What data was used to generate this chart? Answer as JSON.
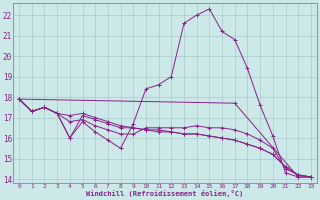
{
  "bg_color": "#cce8e8",
  "grid_color": "#aacccc",
  "line_color": "#882288",
  "marker": "+",
  "xlabel": "Windchill (Refroidissement éolien,°C)",
  "xlim": [
    -0.5,
    23.5
  ],
  "ylim": [
    13.8,
    22.6
  ],
  "yticks": [
    14,
    15,
    16,
    17,
    18,
    19,
    20,
    21,
    22
  ],
  "xticks": [
    0,
    1,
    2,
    3,
    4,
    5,
    6,
    7,
    8,
    9,
    10,
    11,
    12,
    13,
    14,
    15,
    16,
    17,
    18,
    19,
    20,
    21,
    22,
    23
  ],
  "lines": [
    {
      "x": [
        0,
        1,
        2,
        3,
        4,
        5,
        6,
        7,
        8,
        9,
        10,
        11,
        12,
        13,
        14,
        15,
        16,
        17,
        18,
        19,
        20,
        21,
        22,
        23
      ],
      "y": [
        17.9,
        17.3,
        17.5,
        17.2,
        16.0,
        16.8,
        16.3,
        15.9,
        15.5,
        16.7,
        18.4,
        18.6,
        19.0,
        21.6,
        22.0,
        22.3,
        21.2,
        20.8,
        19.4,
        17.6,
        16.1,
        14.3,
        14.1,
        14.1
      ]
    },
    {
      "x": [
        0,
        17,
        22,
        23
      ],
      "y": [
        17.9,
        17.7,
        14.1,
        14.1
      ]
    },
    {
      "x": [
        0,
        1,
        2,
        3,
        4,
        5,
        6,
        7,
        8,
        9,
        10,
        11,
        12,
        13,
        14,
        15,
        16,
        17,
        18,
        19,
        20,
        21,
        22,
        23
      ],
      "y": [
        17.9,
        17.3,
        17.5,
        17.2,
        17.1,
        17.2,
        17.0,
        16.8,
        16.6,
        16.5,
        16.4,
        16.3,
        16.3,
        16.2,
        16.2,
        16.1,
        16.0,
        15.9,
        15.7,
        15.5,
        15.2,
        14.6,
        14.2,
        14.1
      ]
    },
    {
      "x": [
        0,
        1,
        2,
        3,
        4,
        5,
        6,
        7,
        8,
        9,
        10,
        11,
        12,
        13,
        14,
        15,
        16,
        17,
        18,
        19,
        20,
        21,
        22,
        23
      ],
      "y": [
        17.9,
        17.3,
        17.5,
        17.2,
        16.0,
        17.1,
        16.9,
        16.7,
        16.5,
        16.5,
        16.4,
        16.4,
        16.3,
        16.2,
        16.2,
        16.1,
        16.0,
        15.9,
        15.7,
        15.5,
        15.2,
        14.6,
        14.2,
        14.1
      ]
    },
    {
      "x": [
        0,
        1,
        2,
        3,
        4,
        5,
        6,
        7,
        8,
        9,
        10,
        11,
        12,
        13,
        14,
        15,
        16,
        17,
        18,
        19,
        20,
        21,
        22,
        23
      ],
      "y": [
        17.9,
        17.3,
        17.5,
        17.2,
        16.8,
        16.9,
        16.6,
        16.4,
        16.2,
        16.2,
        16.5,
        16.5,
        16.5,
        16.5,
        16.6,
        16.5,
        16.5,
        16.4,
        16.2,
        15.9,
        15.5,
        14.5,
        14.2,
        14.1
      ]
    }
  ]
}
